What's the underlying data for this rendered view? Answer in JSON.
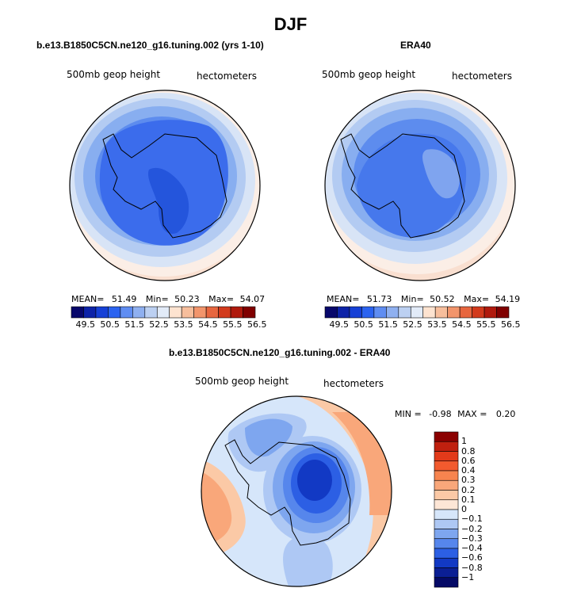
{
  "title": "DJF",
  "panels": [
    {
      "title": "b.e13.B1850C5CN.ne120_g16.tuning.002 (yrs 1-10)",
      "left_label": "500mb geop height",
      "right_label": "hectometers",
      "mean_label": "MEAN=",
      "mean": "51.49",
      "min_label": "Min=",
      "min": "50.23",
      "max_label": "Max=",
      "max": "54.07"
    },
    {
      "title": "ERA40",
      "left_label": "500mb geop height",
      "right_label": "hectometers",
      "mean_label": "MEAN=",
      "mean": "51.73",
      "min_label": "Min=",
      "min": "50.52",
      "max_label": "Max=",
      "max": "54.19"
    }
  ],
  "colorbar": {
    "ticks": [
      "49.5",
      "50.5",
      "51.5",
      "52.5",
      "53.5",
      "54.5",
      "55.5",
      "56.5"
    ],
    "colors": [
      "#08086b",
      "#0d23a8",
      "#1640d6",
      "#2b63f0",
      "#5f8df2",
      "#8fb0f0",
      "#bcd0f2",
      "#e2ebf8",
      "#fde3d0",
      "#f7be9c",
      "#f2956c",
      "#e7663f",
      "#d23a1c",
      "#b01a0d",
      "#800000"
    ]
  },
  "difference": {
    "title": "b.e13.B1850C5CN.ne120_g16.tuning.002 - ERA40",
    "left_label": "500mb geop height",
    "right_label": "hectometers",
    "min_label": "MIN =",
    "min": "-0.98",
    "max_label": "MAX =",
    "max": "0.20",
    "legend_labels": [
      "1",
      "0.8",
      "0.6",
      "0.4",
      "0.3",
      "0.2",
      "0.1",
      "0",
      "−0.1",
      "−0.2",
      "−0.3",
      "−0.4",
      "−0.6",
      "−0.8",
      "−1"
    ],
    "legend_colors": [
      "#8b0000",
      "#c0200f",
      "#e23a1a",
      "#f25a2e",
      "#f7844f",
      "#f9a77a",
      "#fbc9a6",
      "#fde6d6",
      "#d6e6fa",
      "#aec8f4",
      "#7ea6ef",
      "#5686ec",
      "#2c5fe4",
      "#1239c4",
      "#0b1f94",
      "#050a66"
    ]
  }
}
